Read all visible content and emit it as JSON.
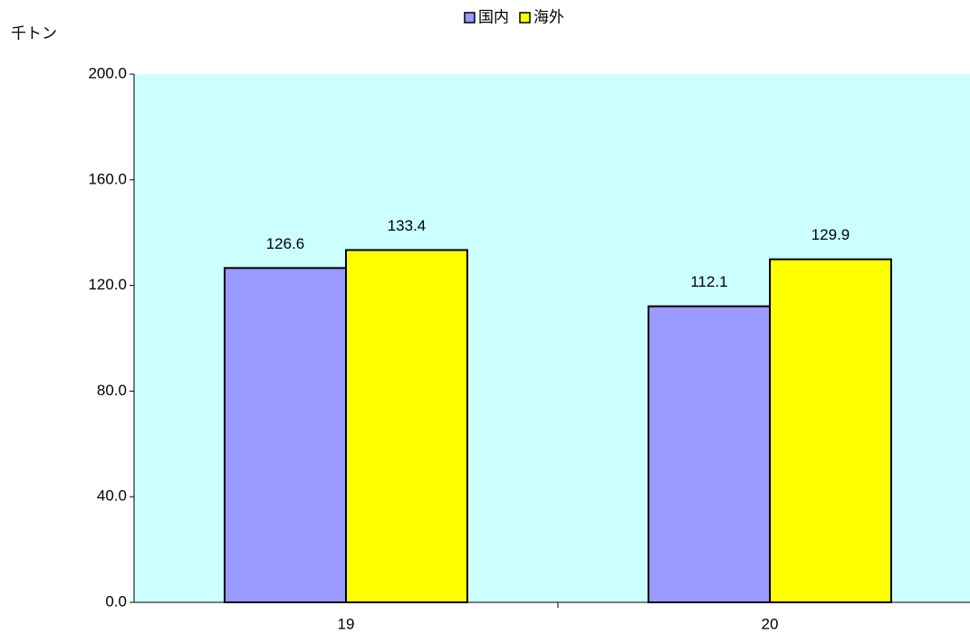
{
  "chart_data": {
    "type": "bar",
    "y_axis_label": "千トン",
    "categories": [
      "19",
      "20"
    ],
    "series": [
      {
        "name": "国内",
        "color": "#9999ff",
        "values": [
          126.6,
          112.1
        ]
      },
      {
        "name": "海外",
        "color": "#ffff00",
        "values": [
          133.4,
          129.9
        ]
      }
    ],
    "ylim": [
      0,
      200
    ],
    "yticks": [
      {
        "value": 0,
        "label": "0.0"
      },
      {
        "value": 40,
        "label": "40.0"
      },
      {
        "value": 80,
        "label": "80.0"
      },
      {
        "value": 120,
        "label": "120.0"
      },
      {
        "value": 160,
        "label": "160.0"
      },
      {
        "value": 200,
        "label": "200.0"
      }
    ],
    "plot_background": "#ccffff",
    "legend": "top"
  }
}
